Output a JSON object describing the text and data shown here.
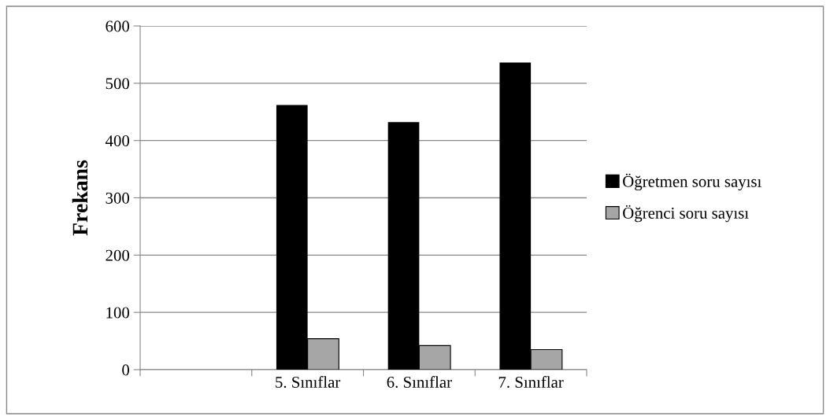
{
  "chart_data": {
    "type": "bar",
    "ylabel": "Frekans",
    "categories": [
      null,
      "5. Sınıflar",
      "6. Sınıflar",
      "7. Sınıflar"
    ],
    "series": [
      {
        "name": "Öğretmen soru sayısı",
        "color": "#000000",
        "values": [
          null,
          462,
          432,
          536
        ]
      },
      {
        "name": "Öğrenci soru sayısı",
        "color": "#a6a6a6",
        "values": [
          null,
          54,
          42,
          35
        ]
      }
    ],
    "ylim": [
      0,
      600
    ],
    "yticks": [
      0,
      100,
      200,
      300,
      400,
      500,
      600
    ],
    "grid": "y",
    "legend": "right"
  }
}
